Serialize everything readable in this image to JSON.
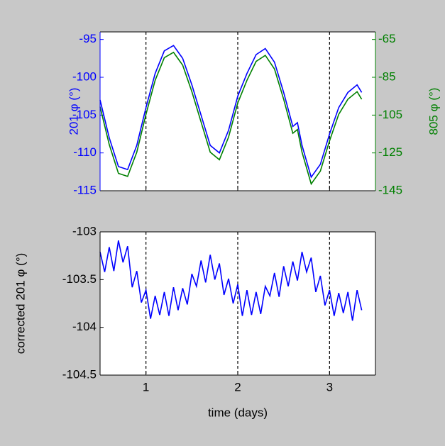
{
  "chart_data": [
    {
      "type": "line",
      "x": [
        0.5,
        0.6,
        0.7,
        0.8,
        0.9,
        1.0,
        1.1,
        1.2,
        1.3,
        1.4,
        1.5,
        1.6,
        1.7,
        1.8,
        1.9,
        2.0,
        2.1,
        2.2,
        2.3,
        2.4,
        2.5,
        2.6,
        2.65,
        2.7,
        2.8,
        2.9,
        3.0,
        3.1,
        3.2,
        3.3,
        3.35
      ],
      "series": [
        {
          "color": "#0000ff",
          "values": [
            -103,
            -108,
            -111.8,
            -112.2,
            -109,
            -104,
            -99.5,
            -96.5,
            -95.8,
            -97.5,
            -101,
            -105,
            -109,
            -110,
            -107,
            -102.5,
            -99.5,
            -97,
            -96.2,
            -98,
            -102,
            -106.5,
            -106,
            -109,
            -113.2,
            -111.5,
            -107.5,
            -104,
            -102,
            -101,
            -102
          ]
        },
        {
          "color": "#008000",
          "axis": "y2",
          "values": [
            -100.6,
            -120.6,
            -135.8,
            -137.4,
            -124.6,
            -104.6,
            -86.6,
            -74.6,
            -71.8,
            -78.6,
            -92.6,
            -108.6,
            -124.6,
            -128.6,
            -116.6,
            -98.6,
            -86.6,
            -76.6,
            -73.4,
            -80.6,
            -96.6,
            -114.6,
            -112.6,
            -124.6,
            -141.4,
            -134.6,
            -118.6,
            -104.6,
            -96.6,
            -92.6,
            -96.6
          ]
        }
      ],
      "ylabel": "201 φ (°)",
      "y2label": "805 φ (°)",
      "ycolor": "#0000ff",
      "y2color": "#008000",
      "xlim": [
        0.5,
        3.5
      ],
      "xticks": [
        1,
        2,
        3
      ],
      "xtick_labels": false,
      "ylim": [
        -115,
        -94
      ],
      "yticks": [
        -115,
        -110,
        -105,
        -100,
        -95
      ],
      "y2lim": [
        -145,
        -61
      ],
      "y2ticks": [
        -145,
        -125,
        -105,
        -85,
        -65
      ],
      "xgrid": true
    },
    {
      "type": "line",
      "x": [
        0.5,
        0.55,
        0.6,
        0.65,
        0.7,
        0.75,
        0.8,
        0.85,
        0.9,
        0.95,
        1.0,
        1.05,
        1.1,
        1.15,
        1.2,
        1.25,
        1.3,
        1.35,
        1.4,
        1.45,
        1.5,
        1.55,
        1.6,
        1.65,
        1.7,
        1.75,
        1.8,
        1.85,
        1.9,
        1.95,
        2.0,
        2.05,
        2.1,
        2.15,
        2.2,
        2.25,
        2.3,
        2.35,
        2.4,
        2.45,
        2.5,
        2.55,
        2.6,
        2.65,
        2.7,
        2.75,
        2.8,
        2.85,
        2.9,
        2.95,
        3.0,
        3.05,
        3.1,
        3.15,
        3.2,
        3.25,
        3.3,
        3.35
      ],
      "series": [
        {
          "color": "#0000ff",
          "values": [
            -103.21,
            -103.42,
            -103.16,
            -103.41,
            -103.09,
            -103.32,
            -103.15,
            -103.58,
            -103.41,
            -103.74,
            -103.61,
            -103.91,
            -103.67,
            -103.87,
            -103.63,
            -103.88,
            -103.58,
            -103.82,
            -103.59,
            -103.76,
            -103.44,
            -103.57,
            -103.3,
            -103.53,
            -103.24,
            -103.5,
            -103.33,
            -103.66,
            -103.49,
            -103.75,
            -103.55,
            -103.88,
            -103.61,
            -103.87,
            -103.63,
            -103.86,
            -103.57,
            -103.67,
            -103.43,
            -103.68,
            -103.36,
            -103.57,
            -103.31,
            -103.51,
            -103.21,
            -103.42,
            -103.27,
            -103.63,
            -103.46,
            -103.77,
            -103.61,
            -103.88,
            -103.64,
            -103.85,
            -103.63,
            -103.93,
            -103.61,
            -103.82
          ]
        }
      ],
      "ylabel": "corrected 201 φ (°)",
      "xlabel": "time (days)",
      "xlim": [
        0.5,
        3.5
      ],
      "xticks": [
        1,
        2,
        3
      ],
      "xtick_labels": true,
      "ylim": [
        -104.5,
        -103
      ],
      "yticks": [
        -104.5,
        -104,
        -103.5,
        -103
      ],
      "xgrid": true
    }
  ]
}
